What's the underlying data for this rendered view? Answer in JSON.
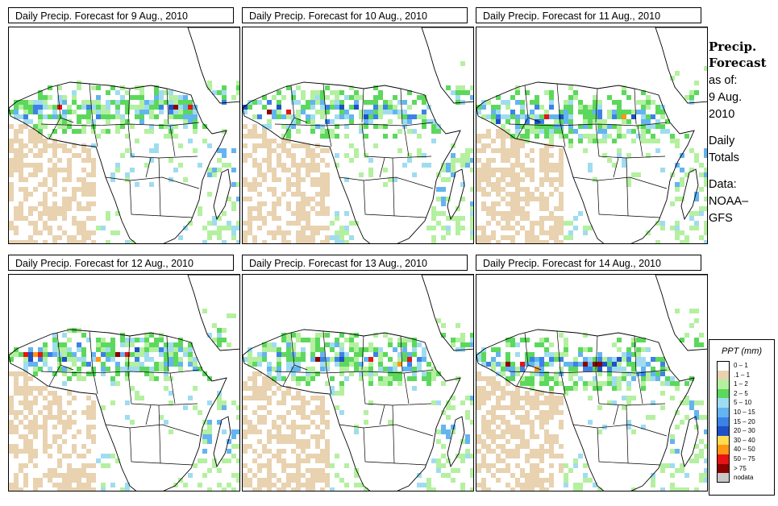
{
  "panels": [
    {
      "title": "Daily Precip. Forecast for  9 Aug., 2010",
      "date": "9 Aug., 2010",
      "seed": 11
    },
    {
      "title": "Daily Precip. Forecast for  10 Aug., 2010",
      "date": "10 Aug., 2010",
      "seed": 23
    },
    {
      "title": "Daily Precip. Forecast for  11 Aug., 2010",
      "date": "11 Aug., 2010",
      "seed": 37
    },
    {
      "title": "Daily Precip. Forecast for  12 Aug., 2010",
      "date": "12 Aug., 2010",
      "seed": 41
    },
    {
      "title": "Daily Precip. Forecast for  13 Aug., 2010",
      "date": "13 Aug., 2010",
      "seed": 53
    },
    {
      "title": "Daily Precip. Forecast for  14 Aug., 2010",
      "date": "14 Aug., 2010",
      "seed": 67
    }
  ],
  "sidebar": {
    "heading_line1": "Precip.",
    "heading_line2": "Forecast",
    "asof_line1": "as of:",
    "asof_line2": "9 Aug.",
    "asof_line3": "2010",
    "daily_line1": "Daily",
    "daily_line2": "Totals",
    "data_line1": "Data:",
    "data_line2": "NOAA–",
    "data_line3": "GFS"
  },
  "legend": {
    "title": "PPT (mm)",
    "items": [
      {
        "label": "0 – 1",
        "color": "#ffffff"
      },
      {
        "label": ".1 – 1",
        "color": "#e8d2b0"
      },
      {
        "label": "1 – 2",
        "color": "#b4f0a0"
      },
      {
        "label": "2 – 5",
        "color": "#5cd85c"
      },
      {
        "label": "5 – 10",
        "color": "#a0dcf0"
      },
      {
        "label": "10 – 15",
        "color": "#64b4f0"
      },
      {
        "label": "15 – 20",
        "color": "#3c82e6"
      },
      {
        "label": "20 – 30",
        "color": "#1e50c8"
      },
      {
        "label": "30 – 40",
        "color": "#ffdc50"
      },
      {
        "label": "40 – 50",
        "color": "#ff9614"
      },
      {
        "label": "50 – 75",
        "color": "#e61414"
      },
      {
        "label": "> 75",
        "color": "#8c0000"
      },
      {
        "label": "nodata",
        "color": "#c8c8c8"
      }
    ]
  }
}
